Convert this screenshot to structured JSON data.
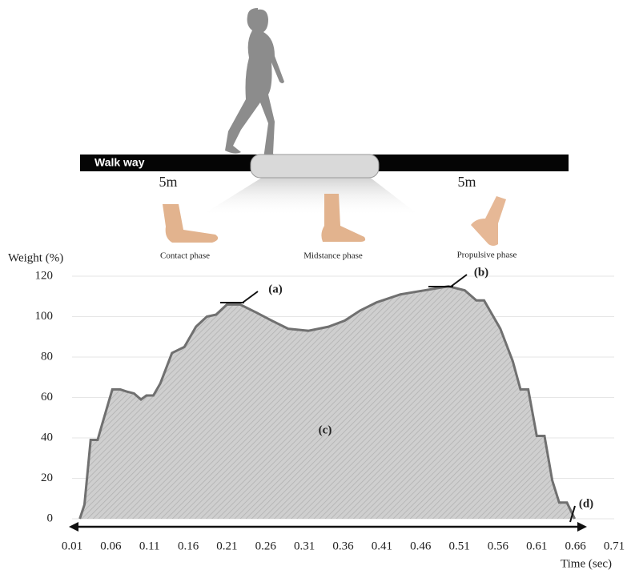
{
  "illustration": {
    "walkway": "Walk way",
    "left_distance": "5m",
    "right_distance": "5m",
    "phases": [
      "Contact phase",
      "Midstance phase",
      "Propulsive phase"
    ]
  },
  "chart_data": {
    "type": "area",
    "y_label": "Weight (%)",
    "x_label": "Time (sec)",
    "x": [
      0.02,
      0.026,
      0.034,
      0.043,
      0.049,
      0.062,
      0.072,
      0.08,
      0.09,
      0.099,
      0.106,
      0.115,
      0.124,
      0.139,
      0.155,
      0.17,
      0.184,
      0.196,
      0.21,
      0.227,
      0.248,
      0.268,
      0.289,
      0.315,
      0.341,
      0.362,
      0.382,
      0.403,
      0.434,
      0.465,
      0.496,
      0.517,
      0.532,
      0.542,
      0.563,
      0.579,
      0.589,
      0.599,
      0.61,
      0.62,
      0.63,
      0.639,
      0.649,
      0.659
    ],
    "values": [
      0,
      7,
      39,
      39,
      47,
      64,
      64,
      63,
      62,
      59,
      61,
      61,
      67,
      82,
      85,
      95,
      100,
      101,
      106,
      106,
      102,
      98,
      94,
      93,
      95,
      98,
      103,
      107,
      111,
      113,
      115,
      113,
      108,
      108,
      94,
      78,
      64,
      64,
      41,
      41,
      19,
      8,
      8,
      0
    ],
    "color": "#c9c9c9",
    "line_color": "#707070",
    "xlim": [
      0.01,
      0.71
    ],
    "xticks": [
      0.01,
      0.06,
      0.11,
      0.16,
      0.21,
      0.26,
      0.31,
      0.36,
      0.41,
      0.46,
      0.51,
      0.56,
      0.61,
      0.66,
      0.71
    ],
    "ylim": [
      0,
      120
    ],
    "yticks": [
      0,
      20,
      40,
      60,
      80,
      100,
      120
    ],
    "grid": true,
    "annotations": [
      "(a)",
      "(b)",
      "(c)",
      "(d)"
    ]
  }
}
